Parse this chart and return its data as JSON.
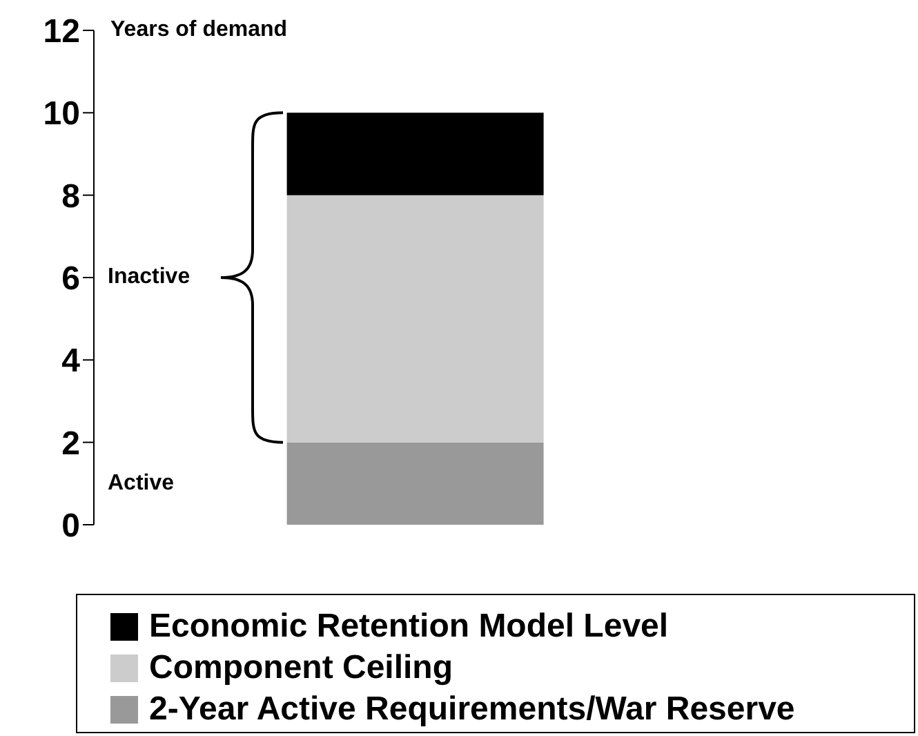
{
  "chart_data": {
    "type": "bar",
    "stacked": true,
    "ylabel": "Years of demand",
    "categories": [
      null
    ],
    "series": [
      {
        "name": "2-Year Active Requirements/War Reserve",
        "color": "#999999",
        "values": [
          2
        ]
      },
      {
        "name": "Component Ceiling",
        "color": "#cccccc",
        "values": [
          6
        ]
      },
      {
        "name": "Economic Retention Model Level",
        "color": "#000000",
        "values": [
          2
        ]
      }
    ],
    "ylim": [
      0,
      12
    ],
    "yticks": [
      0,
      2,
      4,
      6,
      8,
      10,
      12
    ],
    "grid": false,
    "legend": "bottom",
    "annotations": [
      "Inactive",
      "Active"
    ]
  }
}
